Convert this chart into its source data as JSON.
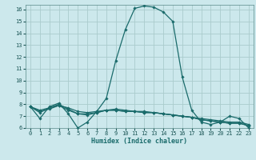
{
  "title": "",
  "xlabel": "Humidex (Indice chaleur)",
  "background_color": "#cce8ec",
  "grid_color": "#aacccc",
  "line_color": "#1a6b6b",
  "xlim": [
    -0.5,
    23.5
  ],
  "ylim": [
    6,
    16.4
  ],
  "yticks": [
    6,
    7,
    8,
    9,
    10,
    11,
    12,
    13,
    14,
    15,
    16
  ],
  "xticks": [
    0,
    1,
    2,
    3,
    4,
    5,
    6,
    7,
    8,
    9,
    10,
    11,
    12,
    13,
    14,
    15,
    16,
    17,
    18,
    19,
    20,
    21,
    22,
    23
  ],
  "series": [
    [
      7.8,
      6.8,
      7.8,
      8.1,
      7.2,
      6.0,
      6.5,
      7.4,
      8.5,
      11.7,
      14.3,
      16.1,
      16.3,
      16.2,
      15.8,
      15.0,
      10.3,
      7.5,
      6.5,
      6.3,
      6.5,
      7.0,
      6.8,
      6.0
    ],
    [
      7.8,
      7.3,
      7.7,
      8.0,
      7.6,
      7.2,
      7.1,
      7.3,
      7.5,
      7.6,
      7.5,
      7.4,
      7.4,
      7.3,
      7.2,
      7.1,
      7.0,
      6.9,
      6.7,
      6.6,
      6.5,
      6.4,
      6.4,
      6.2
    ],
    [
      7.8,
      7.5,
      7.7,
      7.9,
      7.7,
      7.4,
      7.3,
      7.4,
      7.5,
      7.5,
      7.4,
      7.4,
      7.3,
      7.3,
      7.2,
      7.1,
      7.0,
      6.9,
      6.8,
      6.7,
      6.6,
      6.5,
      6.5,
      6.3
    ],
    [
      7.8,
      7.4,
      7.6,
      7.9,
      7.5,
      7.2,
      7.2,
      7.3,
      7.5,
      7.5,
      7.4,
      7.4,
      7.3,
      7.3,
      7.2,
      7.1,
      7.0,
      6.9,
      6.7,
      6.6,
      6.5,
      6.4,
      6.4,
      6.2
    ]
  ]
}
